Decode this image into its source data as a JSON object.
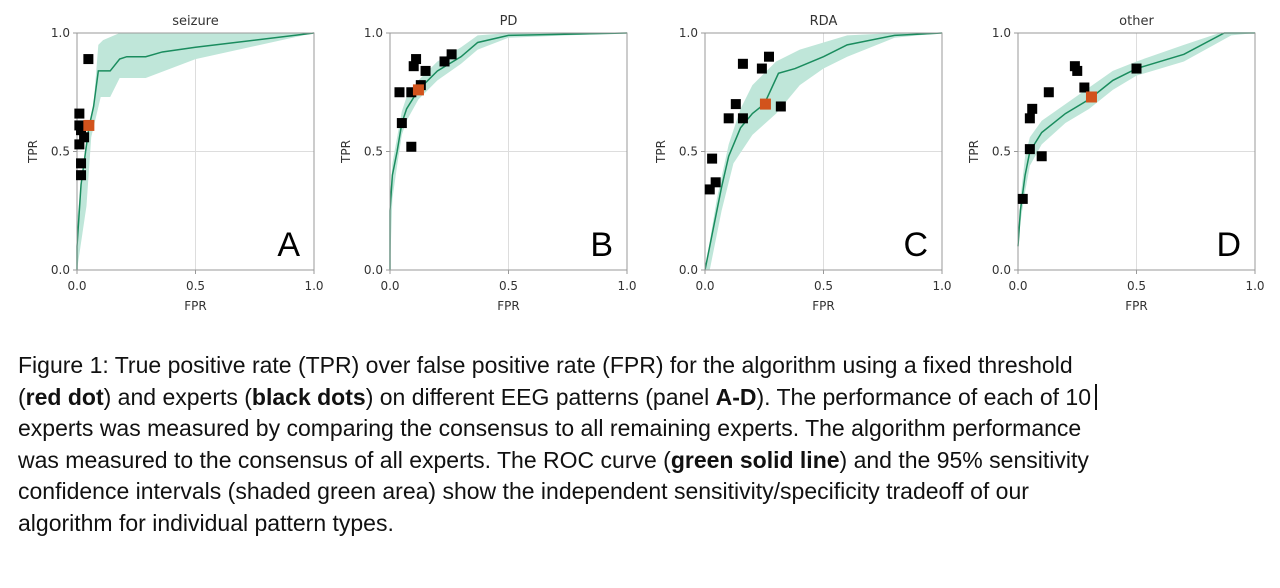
{
  "chart_data": [
    {
      "type": "line",
      "title": "seizure",
      "panel_label": "A",
      "xlabel": "FPR",
      "ylabel": "TPR",
      "xlim": [
        0,
        1
      ],
      "ylim": [
        0,
        1
      ],
      "xticks": [
        "0.0",
        "0.5",
        "1.0"
      ],
      "yticks": [
        "0.0",
        "0.5",
        "1.0"
      ],
      "grid": true,
      "roc_curve": [
        [
          0,
          0
        ],
        [
          0,
          0.1
        ],
        [
          0.017,
          0.36
        ],
        [
          0.05,
          0.6
        ],
        [
          0.07,
          0.69
        ],
        [
          0.09,
          0.84
        ],
        [
          0.14,
          0.84
        ],
        [
          0.18,
          0.89
        ],
        [
          0.21,
          0.9
        ],
        [
          0.29,
          0.9
        ],
        [
          0.36,
          0.92
        ],
        [
          0.5,
          0.94
        ],
        [
          1,
          1
        ]
      ],
      "ci_upper": [
        [
          0,
          0
        ],
        [
          0,
          0.21
        ],
        [
          0.04,
          0.56
        ],
        [
          0.07,
          0.7
        ],
        [
          0.09,
          0.95
        ],
        [
          0.11,
          0.97
        ],
        [
          0.18,
          1
        ],
        [
          1,
          1
        ]
      ],
      "ci_lower": [
        [
          0,
          0
        ],
        [
          0.04,
          0.27
        ],
        [
          0.06,
          0.56
        ],
        [
          0.1,
          0.73
        ],
        [
          0.14,
          0.73
        ],
        [
          0.18,
          0.81
        ],
        [
          0.29,
          0.81
        ],
        [
          0.5,
          0.89
        ],
        [
          1,
          1
        ]
      ],
      "experts": [
        [
          0.048,
          0.89
        ],
        [
          0.01,
          0.66
        ],
        [
          0.01,
          0.61
        ],
        [
          0.017,
          0.59
        ],
        [
          0.03,
          0.56
        ],
        [
          0.01,
          0.53
        ],
        [
          0.017,
          0.45
        ],
        [
          0.017,
          0.4
        ]
      ],
      "algorithm": [
        0.05,
        0.61
      ]
    },
    {
      "type": "line",
      "title": "PD",
      "panel_label": "B",
      "xlabel": "FPR",
      "ylabel": "TPR",
      "xlim": [
        0,
        1
      ],
      "ylim": [
        0,
        1
      ],
      "xticks": [
        "0.0",
        "0.5",
        "1.0"
      ],
      "yticks": [
        "0.0",
        "0.5",
        "1.0"
      ],
      "grid": true,
      "roc_curve": [
        [
          0,
          0
        ],
        [
          0,
          0.25
        ],
        [
          0.01,
          0.4
        ],
        [
          0.03,
          0.5
        ],
        [
          0.05,
          0.62
        ],
        [
          0.07,
          0.68
        ],
        [
          0.12,
          0.76
        ],
        [
          0.2,
          0.84
        ],
        [
          0.3,
          0.9
        ],
        [
          0.37,
          0.96
        ],
        [
          0.5,
          0.99
        ],
        [
          1,
          1
        ]
      ],
      "ci_upper": [
        [
          0,
          0
        ],
        [
          0,
          0.3
        ],
        [
          0.01,
          0.45
        ],
        [
          0.03,
          0.56
        ],
        [
          0.05,
          0.67
        ],
        [
          0.07,
          0.73
        ],
        [
          0.12,
          0.8
        ],
        [
          0.2,
          0.88
        ],
        [
          0.3,
          0.94
        ],
        [
          0.37,
          0.99
        ],
        [
          0.5,
          1
        ],
        [
          1,
          1
        ]
      ],
      "ci_lower": [
        [
          0,
          0
        ],
        [
          0.01,
          0.3
        ],
        [
          0.03,
          0.44
        ],
        [
          0.05,
          0.57
        ],
        [
          0.07,
          0.63
        ],
        [
          0.12,
          0.72
        ],
        [
          0.2,
          0.8
        ],
        [
          0.3,
          0.87
        ],
        [
          0.37,
          0.93
        ],
        [
          0.5,
          0.98
        ],
        [
          1,
          1
        ]
      ],
      "experts": [
        [
          0.04,
          0.75
        ],
        [
          0.09,
          0.75
        ],
        [
          0.11,
          0.89
        ],
        [
          0.1,
          0.86
        ],
        [
          0.15,
          0.84
        ],
        [
          0.23,
          0.88
        ],
        [
          0.26,
          0.91
        ],
        [
          0.13,
          0.78
        ],
        [
          0.05,
          0.62
        ],
        [
          0.09,
          0.52
        ]
      ],
      "algorithm": [
        0.12,
        0.76
      ]
    },
    {
      "type": "line",
      "title": "RDA",
      "panel_label": "C",
      "xlabel": "FPR",
      "ylabel": "TPR",
      "xlim": [
        0,
        1
      ],
      "ylim": [
        0,
        1
      ],
      "xticks": [
        "0.0",
        "0.5",
        "1.0"
      ],
      "yticks": [
        "0.0",
        "0.5",
        "1.0"
      ],
      "grid": true,
      "roc_curve": [
        [
          0,
          0
        ],
        [
          0.03,
          0.15
        ],
        [
          0.07,
          0.35
        ],
        [
          0.1,
          0.48
        ],
        [
          0.15,
          0.6
        ],
        [
          0.2,
          0.66
        ],
        [
          0.25,
          0.7
        ],
        [
          0.31,
          0.83
        ],
        [
          0.38,
          0.85
        ],
        [
          0.5,
          0.9
        ],
        [
          0.6,
          0.95
        ],
        [
          0.8,
          0.99
        ],
        [
          1,
          1
        ]
      ],
      "ci_upper": [
        [
          0,
          0
        ],
        [
          0.05,
          0.3
        ],
        [
          0.1,
          0.53
        ],
        [
          0.15,
          0.68
        ],
        [
          0.2,
          0.78
        ],
        [
          0.3,
          0.88
        ],
        [
          0.4,
          0.93
        ],
        [
          0.6,
          0.99
        ],
        [
          0.8,
          1
        ],
        [
          1,
          1
        ]
      ],
      "ci_lower": [
        [
          0,
          0
        ],
        [
          0.02,
          0
        ],
        [
          0.07,
          0.25
        ],
        [
          0.12,
          0.45
        ],
        [
          0.2,
          0.57
        ],
        [
          0.3,
          0.66
        ],
        [
          0.4,
          0.78
        ],
        [
          0.5,
          0.85
        ],
        [
          0.6,
          0.9
        ],
        [
          0.8,
          0.98
        ],
        [
          1,
          1
        ]
      ],
      "experts": [
        [
          0.27,
          0.9
        ],
        [
          0.16,
          0.87
        ],
        [
          0.24,
          0.85
        ],
        [
          0.13,
          0.7
        ],
        [
          0.1,
          0.64
        ],
        [
          0.16,
          0.64
        ],
        [
          0.32,
          0.69
        ],
        [
          0.03,
          0.47
        ],
        [
          0.045,
          0.37
        ],
        [
          0.02,
          0.34
        ]
      ],
      "algorithm": [
        0.255,
        0.7
      ]
    },
    {
      "type": "line",
      "title": "other",
      "panel_label": "D",
      "xlabel": "FPR",
      "ylabel": "TPR",
      "xlim": [
        0,
        1
      ],
      "ylim": [
        0,
        1
      ],
      "xticks": [
        "0.0",
        "0.5",
        "1.0"
      ],
      "yticks": [
        "0.0",
        "0.5",
        "1.0"
      ],
      "grid": true,
      "roc_curve": [
        [
          0,
          0.1
        ],
        [
          0.01,
          0.25
        ],
        [
          0.03,
          0.4
        ],
        [
          0.05,
          0.5
        ],
        [
          0.1,
          0.58
        ],
        [
          0.2,
          0.66
        ],
        [
          0.3,
          0.72
        ],
        [
          0.4,
          0.8
        ],
        [
          0.5,
          0.85
        ],
        [
          0.7,
          0.91
        ],
        [
          0.87,
          1
        ],
        [
          1,
          1
        ]
      ],
      "ci_upper": [
        [
          0,
          0.12
        ],
        [
          0.01,
          0.3
        ],
        [
          0.03,
          0.48
        ],
        [
          0.05,
          0.56
        ],
        [
          0.1,
          0.63
        ],
        [
          0.2,
          0.7
        ],
        [
          0.3,
          0.77
        ],
        [
          0.4,
          0.84
        ],
        [
          0.5,
          0.88
        ],
        [
          0.7,
          0.95
        ],
        [
          0.85,
          1
        ],
        [
          1,
          1
        ]
      ],
      "ci_lower": [
        [
          0,
          0.08
        ],
        [
          0.01,
          0.2
        ],
        [
          0.03,
          0.33
        ],
        [
          0.05,
          0.44
        ],
        [
          0.1,
          0.53
        ],
        [
          0.2,
          0.62
        ],
        [
          0.3,
          0.68
        ],
        [
          0.4,
          0.76
        ],
        [
          0.5,
          0.82
        ],
        [
          0.7,
          0.88
        ],
        [
          0.9,
          0.99
        ],
        [
          1,
          1
        ]
      ],
      "experts": [
        [
          0.02,
          0.3
        ],
        [
          0.05,
          0.51
        ],
        [
          0.1,
          0.48
        ],
        [
          0.05,
          0.64
        ],
        [
          0.06,
          0.68
        ],
        [
          0.13,
          0.75
        ],
        [
          0.24,
          0.86
        ],
        [
          0.25,
          0.84
        ],
        [
          0.28,
          0.77
        ],
        [
          0.5,
          0.85
        ]
      ],
      "algorithm": [
        0.31,
        0.73
      ]
    }
  ],
  "colors": {
    "curve": "#1a8c5e",
    "band": "#bfe6d9",
    "expert": "#000000",
    "algorithm": "#d2531c",
    "grid": "#dddddd",
    "axis": "#999999"
  },
  "caption": [
    [
      {
        "text": "Figure 1: True positive rate (TPR) over false positive rate (FPR) for the algorithm using a fixed threshold",
        "bold": false
      }
    ],
    [
      {
        "text": "(",
        "bold": false
      },
      {
        "text": "red dot",
        "bold": true
      },
      {
        "text": ") and experts (",
        "bold": false
      },
      {
        "text": "black dots",
        "bold": true
      },
      {
        "text": ") on different EEG patterns (panel ",
        "bold": false
      },
      {
        "text": "A-D",
        "bold": true
      },
      {
        "text": "). The performance of each of 10",
        "bold": false
      }
    ],
    [
      {
        "text": "experts was measured by comparing the consensus to all remaining experts. The algorithm performance",
        "bold": false
      }
    ],
    [
      {
        "text": "was measured to the consensus of all experts. The ROC curve (",
        "bold": false
      },
      {
        "text": "green solid line",
        "bold": true
      },
      {
        "text": ") and the 95% sensitivity",
        "bold": false
      }
    ],
    [
      {
        "text": "confidence intervals (shaded green area) show the independent sensitivity/specificity tradeoff of our",
        "bold": false
      }
    ],
    [
      {
        "text": "algorithm for individual pattern types.",
        "bold": false
      }
    ]
  ]
}
